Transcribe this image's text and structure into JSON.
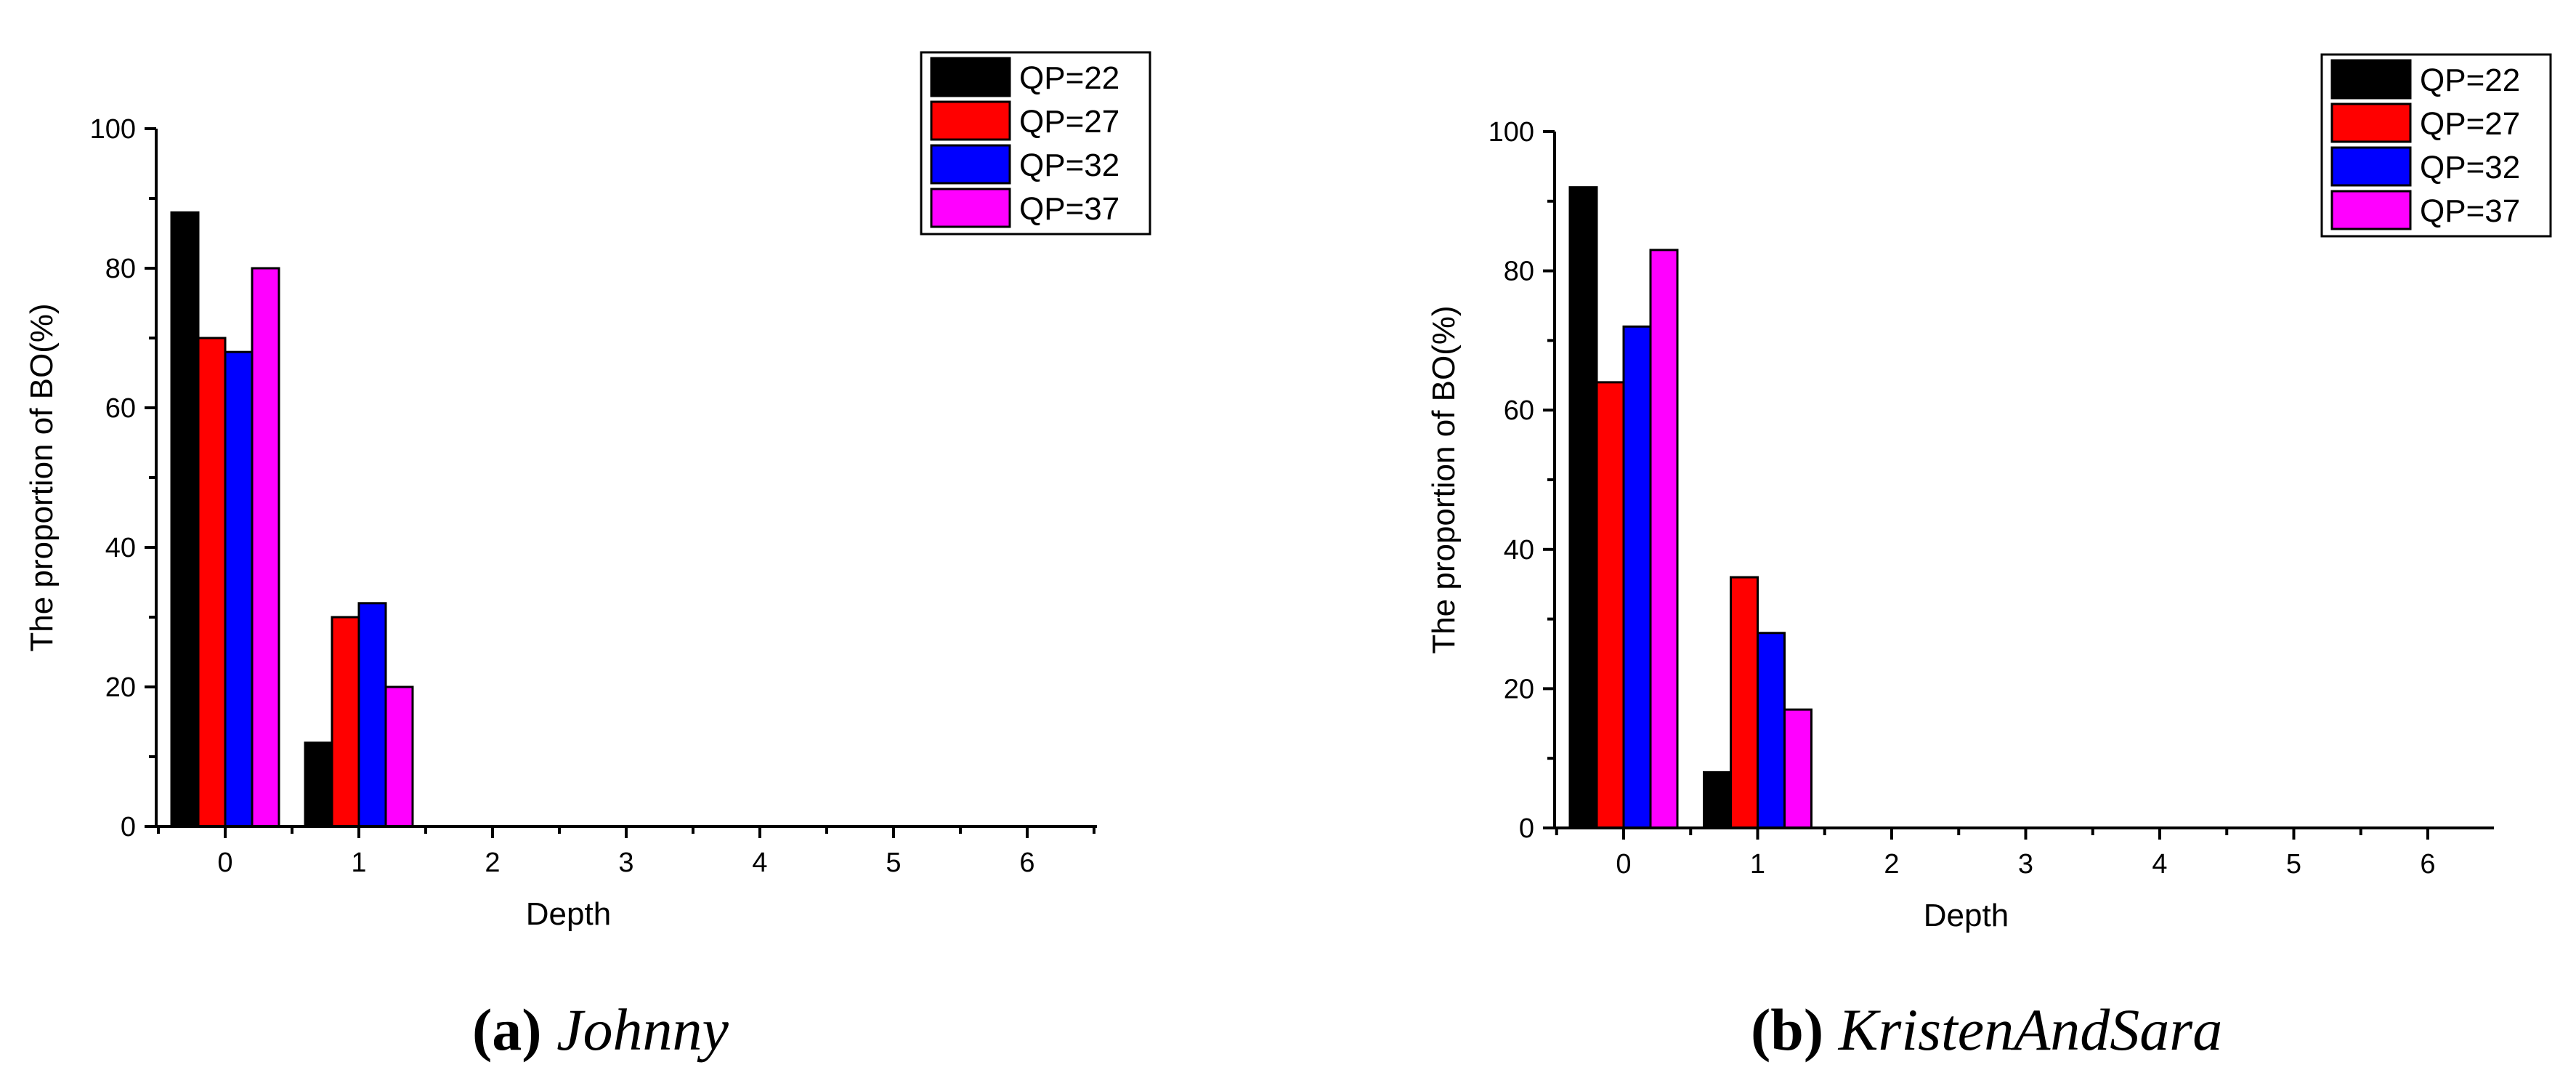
{
  "chart_data": [
    {
      "type": "bar",
      "title": "",
      "xlabel": "Depth",
      "ylabel": "The proportion of BO(%)",
      "categories": [
        "0",
        "1",
        "2",
        "3",
        "4",
        "5",
        "6"
      ],
      "ylim": [
        0,
        100
      ],
      "yticks": [
        0,
        20,
        40,
        60,
        80,
        100
      ],
      "legend_position": "top-right",
      "series": [
        {
          "name": "QP=22",
          "color": "#000000",
          "values": [
            88,
            12,
            0,
            0,
            0,
            0,
            0
          ]
        },
        {
          "name": "QP=27",
          "color": "#ff0000",
          "values": [
            70,
            30,
            0,
            0,
            0,
            0,
            0
          ]
        },
        {
          "name": "QP=32",
          "color": "#0000ff",
          "values": [
            68,
            32,
            0,
            0,
            0,
            0,
            0
          ]
        },
        {
          "name": "QP=37",
          "color": "#ff00ff",
          "values": [
            80,
            20,
            0,
            0,
            0,
            0,
            0
          ]
        }
      ],
      "caption_label": "(a)",
      "caption_name": "Johnny"
    },
    {
      "type": "bar",
      "title": "",
      "xlabel": "Depth",
      "ylabel": "The proportion of BO(%)",
      "categories": [
        "0",
        "1",
        "2",
        "3",
        "4",
        "5",
        "6"
      ],
      "ylim": [
        0,
        100
      ],
      "yticks": [
        0,
        20,
        40,
        60,
        80,
        100
      ],
      "legend_position": "top-right",
      "series": [
        {
          "name": "QP=22",
          "color": "#000000",
          "values": [
            92,
            8,
            0,
            0,
            0,
            0,
            0
          ]
        },
        {
          "name": "QP=27",
          "color": "#ff0000",
          "values": [
            64,
            36,
            0,
            0,
            0,
            0,
            0
          ]
        },
        {
          "name": "QP=32",
          "color": "#0000ff",
          "values": [
            72,
            28,
            0,
            0,
            0,
            0,
            0
          ]
        },
        {
          "name": "QP=37",
          "color": "#ff00ff",
          "values": [
            83,
            17,
            0,
            0,
            0,
            0,
            0
          ]
        }
      ],
      "caption_label": "(b)",
      "caption_name": "KristenAndSara"
    }
  ]
}
